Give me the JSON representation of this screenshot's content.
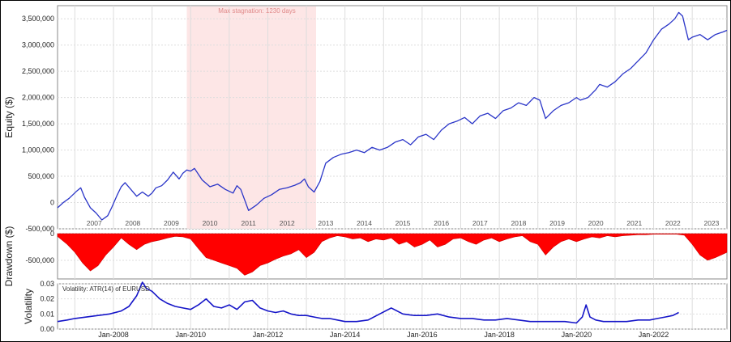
{
  "chart_data": [
    {
      "type": "line",
      "ylabel": "Equity ($)",
      "ylim": [
        -500000,
        3750000
      ],
      "yticks": [
        "3,500,000",
        "3,000,000",
        "2,500,000",
        "2,000,000",
        "1,500,000",
        "1,000,000",
        "500,000",
        "0",
        "-500,000"
      ],
      "yticks_values": [
        3500000,
        3000000,
        2500000,
        2000000,
        1500000,
        1000000,
        500000,
        0,
        -500000
      ],
      "x_year_labels": [
        "2007",
        "2008",
        "2009",
        "2010",
        "2011",
        "2012",
        "2013",
        "2014",
        "2015",
        "2016",
        "2017",
        "2018",
        "2019",
        "2020",
        "2021",
        "2022",
        "2023"
      ],
      "xlim": [
        2006.55,
        2023.9
      ],
      "annotation": "Max stagnation: 1230 days",
      "stagnation_range": [
        2009.9,
        2013.25
      ],
      "line_color": "#2a35c8",
      "shade_color": "#fde6e6",
      "series": [
        {
          "x": [
            2006.55,
            2006.7,
            2006.85,
            2006.95,
            2007.05,
            2007.15,
            2007.25,
            2007.4,
            2007.55,
            2007.7,
            2007.85,
            2007.95,
            2008.1,
            2008.2,
            2008.3,
            2008.45,
            2008.6,
            2008.75,
            2008.9,
            2009.0,
            2009.1,
            2009.25,
            2009.4,
            2009.55,
            2009.7,
            2009.8,
            2009.9,
            2010.0,
            2010.1,
            2010.3,
            2010.5,
            2010.7,
            2010.9,
            2011.1,
            2011.2,
            2011.3,
            2011.5,
            2011.7,
            2011.9,
            2012.1,
            2012.3,
            2012.5,
            2012.7,
            2012.85,
            2012.95,
            2013.05,
            2013.2,
            2013.35,
            2013.5,
            2013.7,
            2013.9,
            2014.1,
            2014.3,
            2014.5,
            2014.7,
            2014.9,
            2015.1,
            2015.3,
            2015.5,
            2015.7,
            2015.9,
            2016.1,
            2016.3,
            2016.5,
            2016.7,
            2016.9,
            2017.1,
            2017.3,
            2017.5,
            2017.7,
            2017.9,
            2018.1,
            2018.3,
            2018.5,
            2018.7,
            2018.9,
            2019.05,
            2019.2,
            2019.4,
            2019.6,
            2019.8,
            2020.0,
            2020.1,
            2020.3,
            2020.5,
            2020.6,
            2020.8,
            2021.0,
            2021.2,
            2021.4,
            2021.6,
            2021.8,
            2022.0,
            2022.2,
            2022.4,
            2022.55,
            2022.65,
            2022.75,
            2022.8,
            2022.9,
            2023.0,
            2023.2,
            2023.4,
            2023.6,
            2023.8,
            2023.9
          ],
          "values": [
            -100000,
            0,
            80000,
            150000,
            220000,
            280000,
            100000,
            -100000,
            -200000,
            -330000,
            -250000,
            -100000,
            150000,
            300000,
            380000,
            250000,
            120000,
            200000,
            120000,
            180000,
            280000,
            320000,
            430000,
            580000,
            450000,
            560000,
            620000,
            600000,
            650000,
            430000,
            300000,
            350000,
            250000,
            180000,
            320000,
            250000,
            -150000,
            -50000,
            80000,
            150000,
            250000,
            280000,
            330000,
            380000,
            450000,
            300000,
            200000,
            400000,
            750000,
            860000,
            920000,
            950000,
            1000000,
            950000,
            1050000,
            1000000,
            1050000,
            1150000,
            1200000,
            1100000,
            1250000,
            1300000,
            1200000,
            1380000,
            1500000,
            1550000,
            1620000,
            1500000,
            1650000,
            1700000,
            1600000,
            1750000,
            1800000,
            1900000,
            1850000,
            2000000,
            1950000,
            1600000,
            1750000,
            1850000,
            1900000,
            2000000,
            1950000,
            2000000,
            2150000,
            2250000,
            2200000,
            2300000,
            2450000,
            2550000,
            2700000,
            2850000,
            3100000,
            3300000,
            3400000,
            3500000,
            3620000,
            3550000,
            3400000,
            3100000,
            3150000,
            3200000,
            3100000,
            3200000,
            3250000,
            3280000
          ]
        }
      ]
    },
    {
      "type": "area",
      "ylabel": "Drawdown ($)",
      "ylim": [
        -850000,
        0
      ],
      "yticks": [
        "0",
        "-500,000"
      ],
      "yticks_values": [
        0,
        -500000
      ],
      "xlim": [
        2006.55,
        2023.9
      ],
      "fill_color": "#ff0000",
      "series": [
        {
          "x": [
            2006.55,
            2006.8,
            2007.0,
            2007.2,
            2007.4,
            2007.6,
            2007.8,
            2008.0,
            2008.2,
            2008.4,
            2008.6,
            2008.8,
            2009.0,
            2009.2,
            2009.4,
            2009.6,
            2009.8,
            2010.0,
            2010.2,
            2010.4,
            2010.6,
            2010.8,
            2011.0,
            2011.2,
            2011.4,
            2011.6,
            2011.8,
            2012.0,
            2012.2,
            2012.4,
            2012.6,
            2012.8,
            2013.0,
            2013.2,
            2013.4,
            2013.6,
            2013.8,
            2014.0,
            2014.2,
            2014.4,
            2014.6,
            2014.8,
            2015.0,
            2015.2,
            2015.4,
            2015.6,
            2015.8,
            2016.0,
            2016.2,
            2016.4,
            2016.6,
            2016.8,
            2017.0,
            2017.2,
            2017.4,
            2017.6,
            2017.8,
            2018.0,
            2018.2,
            2018.4,
            2018.6,
            2018.8,
            2019.0,
            2019.2,
            2019.4,
            2019.6,
            2019.8,
            2020.0,
            2020.2,
            2020.4,
            2020.6,
            2020.8,
            2021.0,
            2021.2,
            2021.4,
            2021.6,
            2021.8,
            2022.0,
            2022.2,
            2022.4,
            2022.6,
            2022.8,
            2023.0,
            2023.2,
            2023.4,
            2023.6,
            2023.9
          ],
          "values": [
            -50000,
            -200000,
            -350000,
            -550000,
            -700000,
            -600000,
            -400000,
            -250000,
            -80000,
            -200000,
            -300000,
            -200000,
            -150000,
            -120000,
            -80000,
            -50000,
            -60000,
            -100000,
            -280000,
            -450000,
            -500000,
            -550000,
            -600000,
            -650000,
            -780000,
            -720000,
            -600000,
            -550000,
            -480000,
            -420000,
            -380000,
            -300000,
            -450000,
            -350000,
            -150000,
            -80000,
            -40000,
            -60000,
            -100000,
            -80000,
            -150000,
            -100000,
            -120000,
            -80000,
            -200000,
            -150000,
            -250000,
            -200000,
            -120000,
            -250000,
            -200000,
            -100000,
            -80000,
            -150000,
            -200000,
            -120000,
            -80000,
            -150000,
            -100000,
            -60000,
            -40000,
            -150000,
            -200000,
            -400000,
            -250000,
            -150000,
            -100000,
            -150000,
            -100000,
            -60000,
            -80000,
            -40000,
            -60000,
            -40000,
            -30000,
            -20000,
            -20000,
            -10000,
            -10000,
            -10000,
            -10000,
            -30000,
            -200000,
            -400000,
            -500000,
            -450000,
            -350000
          ]
        }
      ]
    },
    {
      "type": "line",
      "ylabel": "Volatility",
      "legend": "Volatility: ATR(14) of EURUSD",
      "ylim": [
        0.0,
        0.03
      ],
      "yticks": [
        "0.03",
        "0.02",
        "0.01",
        "0.00"
      ],
      "yticks_values": [
        0.03,
        0.02,
        0.01,
        0.0
      ],
      "x_labels": [
        "Jan-2008",
        "Jan-2010",
        "Jan-2012",
        "Jan-2014",
        "Jan-2016",
        "Jan-2018",
        "Jan-2020",
        "Jan-2022"
      ],
      "x_label_positions": [
        2008.0,
        2010.0,
        2012.0,
        2014.0,
        2016.0,
        2018.0,
        2020.0,
        2022.0
      ],
      "xlim": [
        2006.55,
        2023.9
      ],
      "line_color": "#1515c8",
      "series": [
        {
          "x": [
            2006.55,
            2006.8,
            2007.0,
            2007.3,
            2007.6,
            2007.9,
            2008.2,
            2008.4,
            2008.6,
            2008.75,
            2008.85,
            2009.0,
            2009.2,
            2009.4,
            2009.6,
            2009.8,
            2010.0,
            2010.2,
            2010.4,
            2010.6,
            2010.8,
            2011.0,
            2011.2,
            2011.4,
            2011.6,
            2011.8,
            2012.0,
            2012.2,
            2012.4,
            2012.6,
            2012.8,
            2013.0,
            2013.2,
            2013.4,
            2013.6,
            2013.8,
            2014.0,
            2014.3,
            2014.6,
            2014.9,
            2015.2,
            2015.5,
            2015.8,
            2016.1,
            2016.4,
            2016.7,
            2017.0,
            2017.3,
            2017.6,
            2017.9,
            2018.2,
            2018.5,
            2018.8,
            2019.1,
            2019.4,
            2019.7,
            2020.0,
            2020.15,
            2020.25,
            2020.35,
            2020.5,
            2020.7,
            2021.0,
            2021.3,
            2021.6,
            2021.9,
            2022.1,
            2022.3,
            2022.5,
            2022.65
          ],
          "values": [
            0.005,
            0.006,
            0.007,
            0.008,
            0.009,
            0.01,
            0.012,
            0.015,
            0.022,
            0.031,
            0.027,
            0.025,
            0.02,
            0.017,
            0.015,
            0.014,
            0.013,
            0.016,
            0.02,
            0.015,
            0.014,
            0.016,
            0.013,
            0.018,
            0.019,
            0.014,
            0.012,
            0.011,
            0.012,
            0.01,
            0.009,
            0.009,
            0.008,
            0.007,
            0.007,
            0.006,
            0.005,
            0.005,
            0.006,
            0.01,
            0.014,
            0.01,
            0.009,
            0.009,
            0.01,
            0.008,
            0.007,
            0.007,
            0.006,
            0.006,
            0.007,
            0.006,
            0.005,
            0.005,
            0.005,
            0.005,
            0.004,
            0.008,
            0.016,
            0.008,
            0.006,
            0.005,
            0.005,
            0.005,
            0.006,
            0.006,
            0.007,
            0.008,
            0.009,
            0.011
          ]
        }
      ]
    }
  ]
}
